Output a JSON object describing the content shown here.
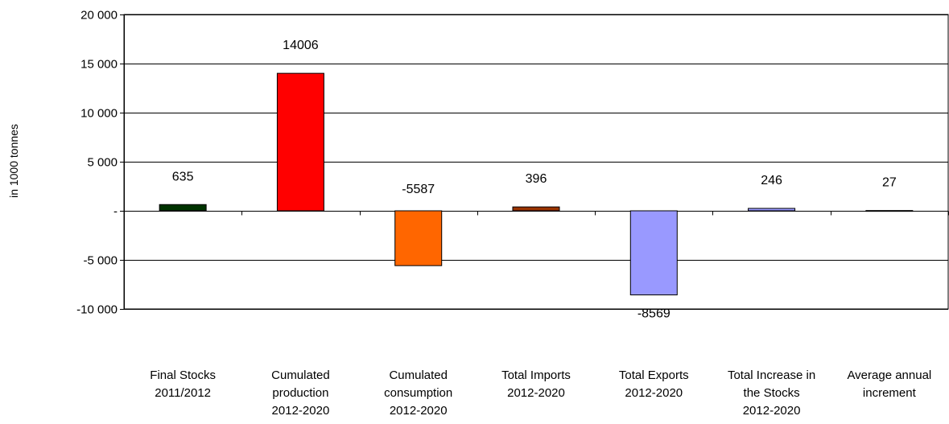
{
  "chart_data": {
    "type": "bar",
    "title": "",
    "xlabel": "",
    "ylabel": "in 1000 tonnes",
    "ylim": [
      -10000,
      20000
    ],
    "yticks": [
      20000,
      15000,
      10000,
      5000,
      0,
      -5000,
      -10000
    ],
    "ytick_labels": [
      "20 000",
      "15 000",
      "10 000",
      "5 000",
      "-",
      "-5 000",
      "-10 000"
    ],
    "grid": true,
    "legend": "none",
    "categories": [
      [
        "Final Stocks",
        "2011/2012"
      ],
      [
        "Cumulated",
        "production",
        "2012-2020"
      ],
      [
        "Cumulated",
        "consumption",
        "2012-2020"
      ],
      [
        "Total Imports",
        "2012-2020"
      ],
      [
        "Total Exports",
        "2012-2020"
      ],
      [
        "Total Increase in",
        "the Stocks",
        "2012-2020"
      ],
      [
        "Average annual",
        "increment"
      ]
    ],
    "values": [
      635,
      14006,
      -5587,
      396,
      -8569,
      246,
      27
    ],
    "data_labels": [
      "635",
      "14006",
      "-5587",
      "396",
      "-8569",
      "246",
      "27"
    ],
    "colors": [
      "#003300",
      "#ff0000",
      "#ff6600",
      "#993300",
      "#9999ff",
      "#9999ff",
      "#9999ff"
    ]
  }
}
